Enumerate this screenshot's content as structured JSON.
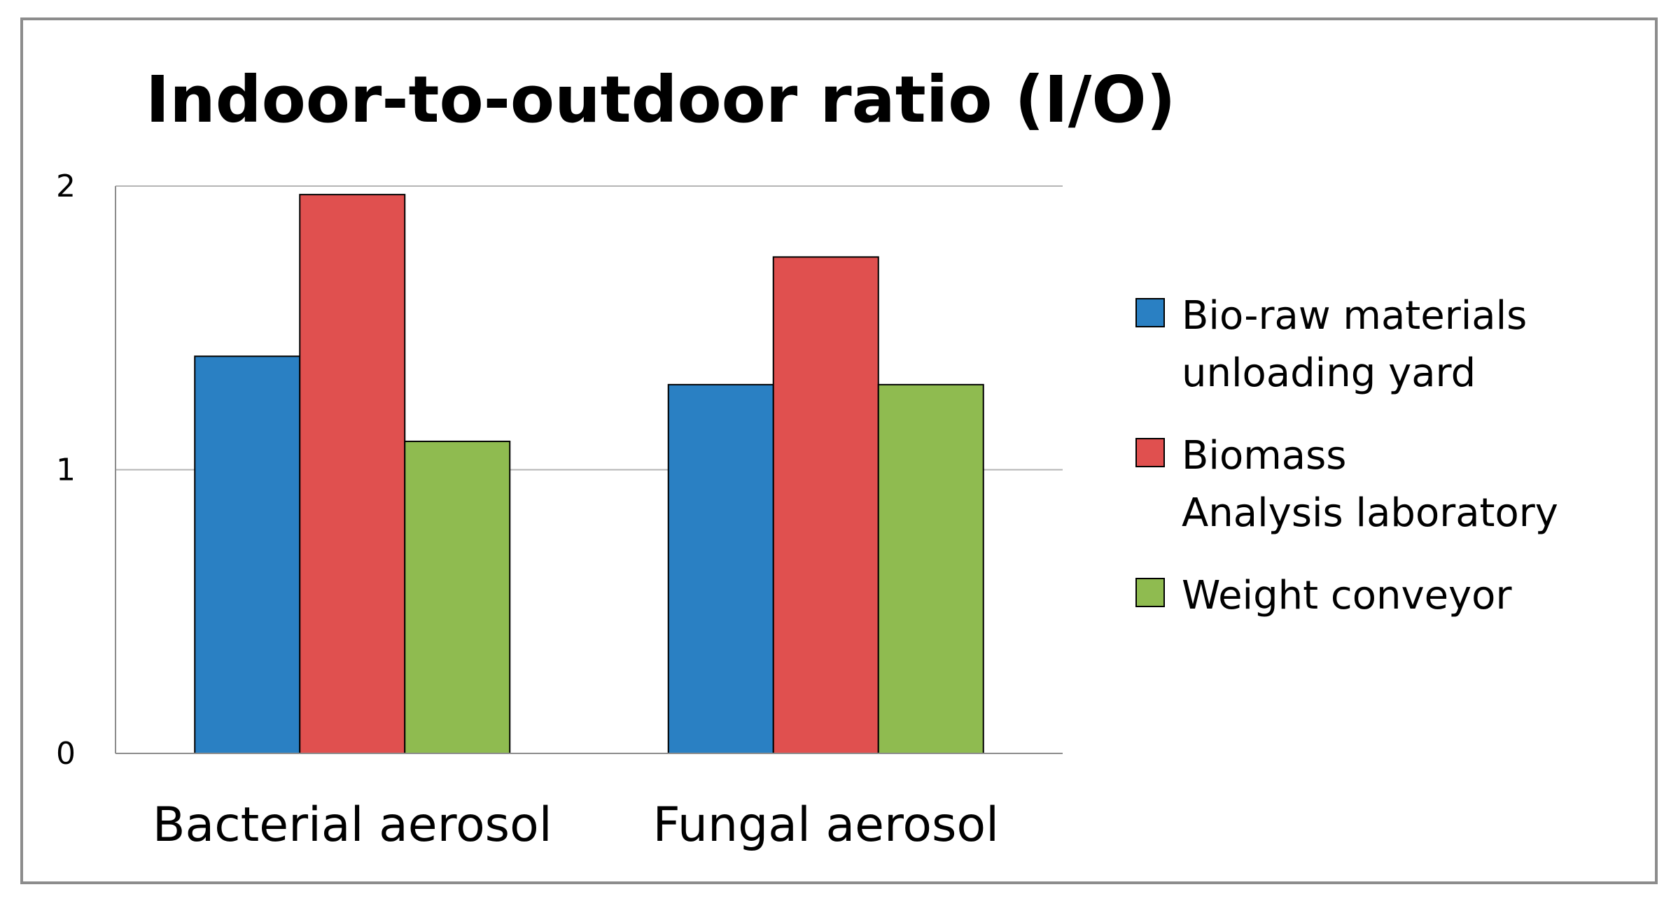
{
  "chart_data": {
    "type": "bar",
    "title": "Indoor-to-outdoor ratio (I/O)",
    "xlabel": "",
    "ylabel": "",
    "categories": [
      "Bacterial aerosol",
      "Fungal aerosol"
    ],
    "series": [
      {
        "name": "Bio-raw materials unloading yard",
        "legend_lines": [
          "Bio-raw materials",
          "unloading yard"
        ],
        "color": "#2a80c3",
        "values": [
          1.4,
          1.3
        ]
      },
      {
        "name": "Biomass Analysis laboratory",
        "legend_lines": [
          "Biomass",
          "Analysis laboratory"
        ],
        "color": "#e0504f",
        "values": [
          1.97,
          1.75
        ]
      },
      {
        "name": "Weight conveyor",
        "legend_lines": [
          "Weight conveyor"
        ],
        "color": "#8fbb50",
        "values": [
          1.1,
          1.3
        ]
      }
    ],
    "ylim": [
      0,
      2
    ],
    "yticks": [
      "0",
      "1",
      "2"
    ],
    "grid": true,
    "legend": "right"
  }
}
